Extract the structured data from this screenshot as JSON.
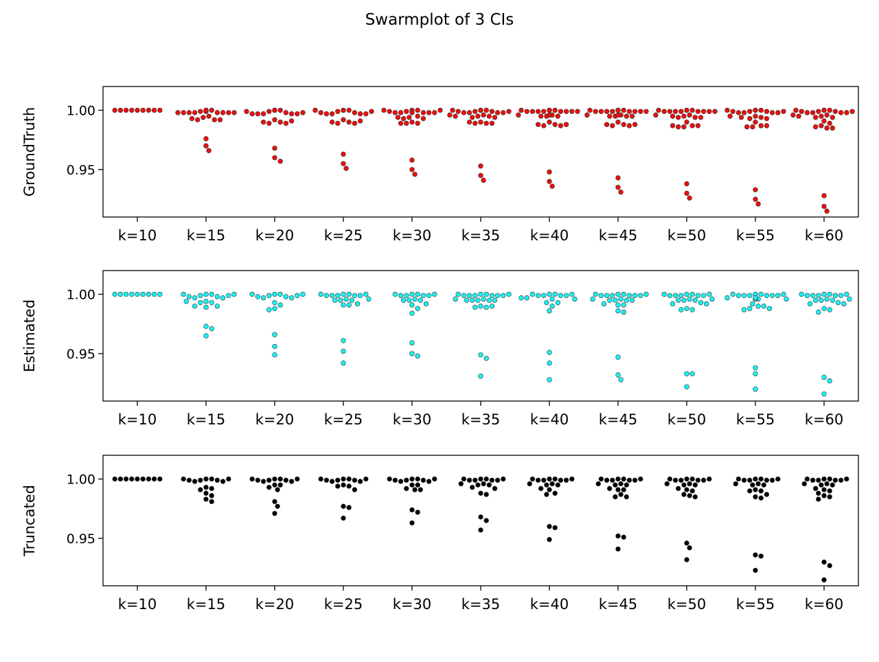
{
  "figure": {
    "title": "Swarmplot of 3 CIs"
  },
  "chart_data": [
    {
      "type": "swarm",
      "ylabel": "GroundTruth",
      "ylim": [
        0.91,
        1.02
      ],
      "yticks": [
        1.0,
        0.95
      ],
      "ytick_labels": [
        "1.00",
        "0.95"
      ],
      "color": "#e8100e",
      "categories": [
        "k=10",
        "k=15",
        "k=20",
        "k=25",
        "k=30",
        "k=35",
        "k=40",
        "k=45",
        "k=50",
        "k=55",
        "k=60"
      ],
      "values": [
        [
          1,
          1,
          1,
          1,
          1,
          1,
          1,
          1,
          1
        ],
        [
          1,
          1,
          0.999,
          0.998,
          0.998,
          0.998,
          0.998,
          0.998,
          0.998,
          0.998,
          0.998,
          0.999,
          1,
          1,
          0.995,
          0.994,
          0.992,
          0.992,
          0.992,
          0.993,
          0.976,
          0.97,
          0.966
        ],
        [
          1,
          1,
          0.999,
          0.998,
          0.997,
          0.997,
          0.997,
          0.997,
          0.997,
          0.998,
          0.999,
          1,
          1,
          0.992,
          0.99,
          0.989,
          0.989,
          0.99,
          0.991,
          0.968,
          0.96,
          0.957
        ],
        [
          1,
          1,
          0.999,
          0.998,
          0.997,
          0.997,
          0.997,
          0.997,
          0.998,
          0.999,
          1,
          1,
          0.992,
          0.99,
          0.989,
          0.989,
          0.99,
          0.991,
          0.963,
          0.955,
          0.951
        ],
        [
          1,
          1,
          0.999,
          0.998,
          0.998,
          0.998,
          0.998,
          0.998,
          0.999,
          1,
          1,
          0.998,
          0.995,
          0.994,
          0.993,
          0.993,
          0.994,
          0.99,
          0.989,
          0.989,
          0.989,
          0.958,
          0.95,
          0.946
        ],
        [
          1,
          1,
          0.999,
          0.999,
          0.998,
          0.998,
          0.998,
          0.998,
          0.999,
          0.999,
          1,
          1,
          0.996,
          0.995,
          0.995,
          0.994,
          0.994,
          0.995,
          0.996,
          0.99,
          0.989,
          0.989,
          0.989,
          0.99,
          0.953,
          0.945,
          0.941
        ],
        [
          1,
          1,
          0.999,
          0.999,
          0.999,
          0.999,
          0.999,
          0.999,
          0.999,
          0.999,
          1,
          1,
          0.996,
          0.996,
          0.995,
          0.995,
          0.995,
          0.996,
          0.996,
          0.99,
          0.988,
          0.987,
          0.987,
          0.988,
          0.988,
          0.948,
          0.94,
          0.936
        ],
        [
          1,
          1,
          0.999,
          0.999,
          0.999,
          0.999,
          0.999,
          0.999,
          0.999,
          0.999,
          1,
          1,
          0.996,
          0.995,
          0.995,
          0.995,
          0.995,
          0.996,
          0.996,
          0.99,
          0.988,
          0.987,
          0.987,
          0.988,
          0.988,
          0.943,
          0.935,
          0.931
        ],
        [
          1,
          1,
          0.999,
          0.999,
          0.999,
          0.999,
          0.999,
          0.999,
          0.999,
          0.999,
          1,
          1,
          0.996,
          0.995,
          0.994,
          0.994,
          0.994,
          0.995,
          0.996,
          0.99,
          0.987,
          0.986,
          0.986,
          0.987,
          0.987,
          0.938,
          0.93,
          0.926
        ],
        [
          1,
          1,
          0.999,
          0.999,
          0.998,
          0.998,
          0.998,
          0.998,
          0.999,
          0.999,
          1,
          1,
          0.995,
          0.994,
          0.993,
          0.993,
          0.994,
          0.995,
          0.99,
          0.987,
          0.986,
          0.986,
          0.987,
          0.933,
          0.925,
          0.921
        ],
        [
          1,
          1,
          0.999,
          0.999,
          0.998,
          0.998,
          0.998,
          0.998,
          0.999,
          0.999,
          1,
          1,
          0.996,
          0.995,
          0.994,
          0.994,
          0.995,
          0.996,
          0.991,
          0.989,
          0.987,
          0.985,
          0.985,
          0.986,
          0.928,
          0.919,
          0.915
        ]
      ]
    },
    {
      "type": "swarm",
      "ylabel": "Estimated",
      "ylim": [
        0.91,
        1.02
      ],
      "yticks": [
        1.0,
        0.95
      ],
      "ytick_labels": [
        "1.00",
        "0.95"
      ],
      "color": "#19f1f1",
      "categories": [
        "k=10",
        "k=15",
        "k=20",
        "k=25",
        "k=30",
        "k=35",
        "k=40",
        "k=45",
        "k=50",
        "k=55",
        "k=60"
      ],
      "values": [
        [
          1,
          1,
          1,
          1,
          1,
          1,
          1,
          1,
          1
        ],
        [
          1,
          1,
          0.999,
          0.998,
          0.997,
          0.997,
          0.998,
          0.999,
          1,
          1,
          0.994,
          0.993,
          0.993,
          0.994,
          0.99,
          0.989,
          0.99,
          0.973,
          0.971,
          0.965
        ],
        [
          1,
          1,
          0.999,
          0.998,
          0.997,
          0.997,
          0.998,
          0.999,
          1,
          1,
          0.993,
          0.991,
          0.988,
          0.987,
          0.966,
          0.956,
          0.949
        ],
        [
          1,
          1,
          0.999,
          0.999,
          0.999,
          0.999,
          0.999,
          1,
          1,
          0.996,
          0.995,
          0.995,
          0.995,
          0.996,
          0.992,
          0.991,
          0.991,
          0.961,
          0.952,
          0.942
        ],
        [
          1,
          1,
          0.999,
          0.999,
          0.999,
          0.999,
          1,
          1,
          0.996,
          0.995,
          0.995,
          0.995,
          0.992,
          0.991,
          0.988,
          0.984,
          0.959,
          0.95,
          0.948
        ],
        [
          1,
          1,
          0.999,
          0.999,
          0.999,
          0.999,
          0.999,
          0.999,
          1,
          1,
          0.996,
          0.995,
          0.995,
          0.995,
          0.995,
          0.995,
          0.996,
          0.99,
          0.989,
          0.989,
          0.99,
          0.949,
          0.946,
          0.931
        ],
        [
          1,
          1,
          0.999,
          0.999,
          0.999,
          0.999,
          1,
          1,
          0.997,
          0.996,
          0.996,
          0.997,
          0.993,
          0.993,
          0.99,
          0.986,
          0.951,
          0.942,
          0.928
        ],
        [
          1,
          1,
          0.999,
          0.999,
          0.999,
          0.999,
          0.999,
          0.999,
          1,
          1,
          0.996,
          0.995,
          0.995,
          0.995,
          0.995,
          0.996,
          0.992,
          0.991,
          0.991,
          0.986,
          0.985,
          0.947,
          0.932,
          0.928
        ],
        [
          1,
          1,
          0.999,
          0.999,
          0.999,
          0.999,
          0.999,
          1,
          1,
          0.996,
          0.995,
          0.995,
          0.995,
          0.996,
          0.993,
          0.992,
          0.992,
          0.988,
          0.987,
          0.987,
          0.933,
          0.933,
          0.922
        ],
        [
          1,
          1,
          0.999,
          0.999,
          0.999,
          0.999,
          0.999,
          0.999,
          1,
          1,
          0.997,
          0.996,
          0.996,
          0.996,
          0.996,
          0.997,
          0.992,
          0.99,
          0.99,
          0.988,
          0.987,
          0.988,
          0.938,
          0.933,
          0.92
        ],
        [
          1,
          1,
          0.999,
          0.999,
          0.999,
          0.999,
          0.999,
          1,
          1,
          0.996,
          0.995,
          0.995,
          0.995,
          0.996,
          0.993,
          0.992,
          0.992,
          0.988,
          0.987,
          0.985,
          0.93,
          0.927,
          0.916
        ]
      ]
    },
    {
      "type": "swarm",
      "ylabel": "Truncated",
      "ylim": [
        0.91,
        1.02
      ],
      "yticks": [
        1.0,
        0.95
      ],
      "ytick_labels": [
        "1.00",
        "0.95"
      ],
      "color": "#000000",
      "categories": [
        "k=10",
        "k=15",
        "k=20",
        "k=25",
        "k=30",
        "k=35",
        "k=40",
        "k=45",
        "k=50",
        "k=55",
        "k=60"
      ],
      "values": [
        [
          1,
          1,
          1,
          1,
          1,
          1,
          1,
          1,
          1
        ],
        [
          1,
          1,
          0.999,
          0.999,
          0.998,
          0.998,
          0.999,
          1,
          1,
          0.993,
          0.992,
          0.991,
          0.988,
          0.986,
          0.983,
          0.981
        ],
        [
          1,
          1,
          0.999,
          0.999,
          0.998,
          0.998,
          0.999,
          1,
          1,
          0.995,
          0.995,
          0.993,
          0.991,
          0.981,
          0.977,
          0.971
        ],
        [
          1,
          1,
          0.999,
          0.999,
          0.998,
          0.998,
          0.999,
          1,
          1,
          0.995,
          0.994,
          0.994,
          0.991,
          0.977,
          0.976,
          0.967
        ],
        [
          1,
          1,
          0.999,
          0.999,
          0.998,
          0.998,
          0.999,
          1,
          1,
          0.995,
          0.995,
          0.992,
          0.991,
          0.991,
          0.974,
          0.972,
          0.963
        ],
        [
          1,
          1,
          0.999,
          0.999,
          0.999,
          0.999,
          1,
          1,
          0.996,
          0.995,
          0.995,
          0.996,
          0.993,
          0.992,
          0.988,
          0.987,
          0.968,
          0.965,
          0.957
        ],
        [
          1,
          1,
          0.999,
          0.999,
          0.999,
          0.999,
          1,
          1,
          0.996,
          0.995,
          0.995,
          0.996,
          0.992,
          0.991,
          0.988,
          0.987,
          0.96,
          0.959,
          0.949
        ],
        [
          1,
          1,
          0.999,
          0.999,
          0.999,
          0.999,
          1,
          1,
          0.996,
          0.995,
          0.995,
          0.996,
          0.992,
          0.991,
          0.991,
          0.987,
          0.985,
          0.985,
          0.952,
          0.951,
          0.941
        ],
        [
          1,
          1,
          0.999,
          0.999,
          0.999,
          0.999,
          1,
          1,
          0.996,
          0.995,
          0.995,
          0.996,
          0.992,
          0.991,
          0.99,
          0.987,
          0.986,
          0.985,
          0.946,
          0.942,
          0.932
        ],
        [
          1,
          1,
          0.999,
          0.999,
          0.999,
          0.999,
          1,
          1,
          0.996,
          0.995,
          0.995,
          0.996,
          0.991,
          0.99,
          0.99,
          0.987,
          0.985,
          0.984,
          0.936,
          0.935,
          0.923
        ],
        [
          1,
          1,
          0.999,
          0.999,
          0.999,
          0.999,
          1,
          1,
          0.996,
          0.995,
          0.995,
          0.996,
          0.992,
          0.991,
          0.99,
          0.988,
          0.986,
          0.985,
          0.983,
          0.93,
          0.927,
          0.915
        ]
      ]
    }
  ]
}
